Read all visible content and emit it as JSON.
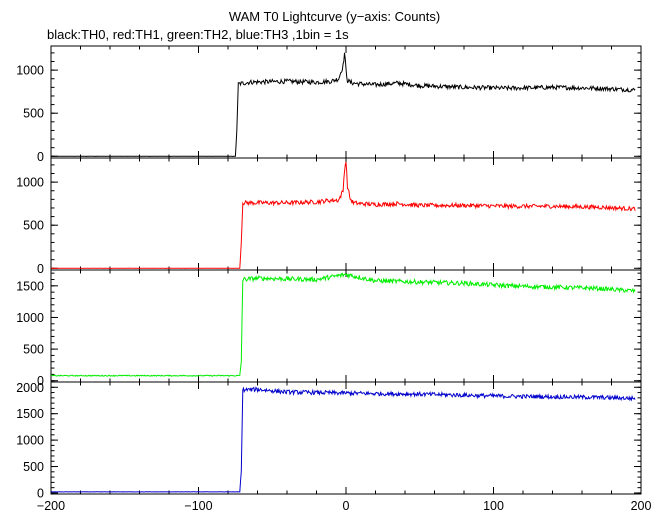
{
  "chart_data": {
    "type": "line",
    "title": "WAM T0 Lightcurve (y−axis: Counts)",
    "subtitle": "black:TH0, red:TH1, green:TH2, blue:TH3 ,1bin = 1s",
    "xlim": [
      -200,
      200
    ],
    "x_ticks": [
      -200,
      -100,
      0,
      100,
      200
    ],
    "x_tick_labels": [
      "−200",
      "−100",
      "0",
      "100",
      "200"
    ],
    "grid": false,
    "panels": [
      {
        "color": "#000000",
        "ylim": [
          -20,
          1280
        ],
        "y_ticks": [
          0,
          500,
          1000
        ],
        "y_tick_labels": [
          "0",
          "500",
          "1000"
        ],
        "series": [
          {
            "x": [
              -200,
              -75,
              -74,
              -73,
              -65,
              -40,
              -20,
              -10,
              -5,
              -2,
              -1,
              0,
              1,
              3,
              5,
              10,
              20,
              35,
              50,
              80,
              110,
              140,
              170,
              195
            ],
            "y": [
              0,
              0,
              300,
              840,
              860,
              870,
              860,
              870,
              900,
              1050,
              1200,
              1000,
              880,
              860,
              850,
              840,
              830,
              850,
              820,
              800,
              790,
              800,
              790,
              770
            ]
          }
        ]
      },
      {
        "color": "#ff0000",
        "ylim": [
          -20,
          1280
        ],
        "y_ticks": [
          0,
          500,
          1000
        ],
        "y_tick_labels": [
          "0",
          "500",
          "1000"
        ],
        "series": [
          {
            "x": [
              -200,
              -72,
              -71,
              -70,
              -60,
              -40,
              -20,
              -10,
              -5,
              -2,
              -1,
              0,
              1,
              3,
              5,
              10,
              20,
              35,
              50,
              80,
              110,
              140,
              170,
              195
            ],
            "y": [
              0,
              0,
              300,
              760,
              760,
              760,
              770,
              790,
              790,
              900,
              1150,
              1250,
              950,
              800,
              760,
              750,
              740,
              750,
              730,
              730,
              720,
              720,
              710,
              690
            ]
          }
        ]
      },
      {
        "color": "#00ee00",
        "ylim": [
          -20,
          1750
        ],
        "y_ticks": [
          0,
          500,
          1000,
          1500
        ],
        "y_tick_labels": [
          "0",
          "500",
          "1000",
          "1500"
        ],
        "series": [
          {
            "x": [
              -200,
              -72,
              -71,
              -70,
              -60,
              -40,
              -20,
              0,
              20,
              50,
              80,
              110,
              140,
              170,
              195
            ],
            "y": [
              80,
              80,
              300,
              1600,
              1620,
              1610,
              1600,
              1680,
              1580,
              1560,
              1540,
              1500,
              1480,
              1460,
              1420
            ]
          }
        ]
      },
      {
        "color": "#0000cc",
        "ylim": [
          -20,
          2100
        ],
        "y_ticks": [
          0,
          500,
          1000,
          1500,
          2000
        ],
        "y_tick_labels": [
          "0",
          "500",
          "1000",
          "1500",
          "2000"
        ],
        "series": [
          {
            "x": [
              -200,
              -72,
              -71,
              -70,
              -60,
              -40,
              -20,
              0,
              20,
              50,
              80,
              110,
              140,
              170,
              195
            ],
            "y": [
              20,
              20,
              400,
              1950,
              1960,
              1910,
              1900,
              1890,
              1880,
              1870,
              1850,
              1830,
              1820,
              1810,
              1790
            ]
          }
        ]
      }
    ]
  }
}
